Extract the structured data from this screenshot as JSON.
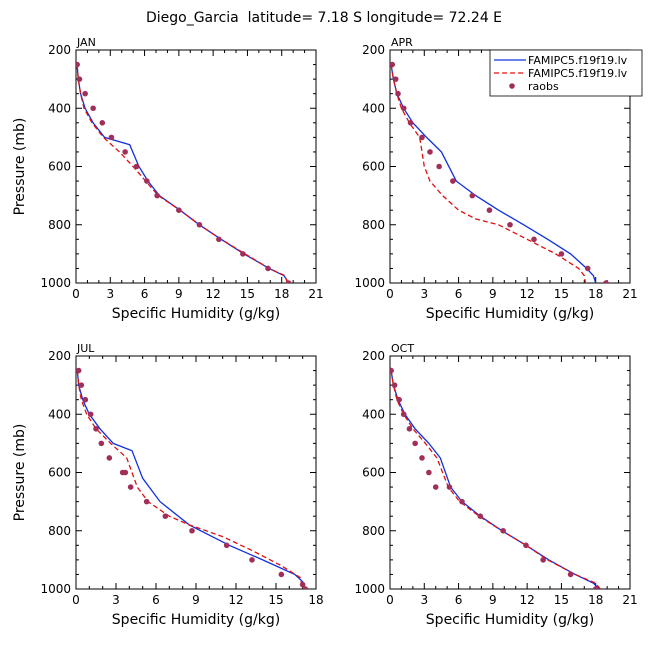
{
  "title": "Diego_Garcia  latitude= 7.18 S longitude= 72.24 E",
  "colors": {
    "model1": "#1030e0",
    "model2": "#e01010",
    "raobs": "#a0305a"
  },
  "legend": {
    "entries": [
      {
        "label": "FAMIPC5.f19f19.lv",
        "style": "solid",
        "color": "#1030e0"
      },
      {
        "label": "FAMIPC5.f19f19.lv",
        "style": "dashed",
        "color": "#e01010"
      },
      {
        "label": "raobs",
        "style": "marker",
        "color": "#a0305a"
      }
    ]
  },
  "chart_data": [
    {
      "type": "line",
      "title": "JAN",
      "xlabel": "Specific Humidity (g/kg)",
      "ylabel": "Pressure (mb)",
      "xlim": [
        0,
        21
      ],
      "ylim": [
        1000,
        200
      ],
      "xticks": [
        0,
        3,
        6,
        9,
        12,
        15,
        18,
        21
      ],
      "yticks": [
        200,
        400,
        600,
        800,
        1000
      ],
      "show_ylabel": true,
      "show_legend": false,
      "series": [
        {
          "style": "solid",
          "color": "#1030e0",
          "x": [
            0.1,
            0.2,
            0.4,
            0.8,
            1.5,
            2.5,
            4.7,
            5.5,
            6.3,
            7.3,
            9.1,
            10.8,
            12.7,
            14.7,
            16.9,
            18.2,
            18.6
          ],
          "y": [
            250,
            300,
            350,
            400,
            450,
            500,
            525,
            600,
            650,
            700,
            750,
            800,
            850,
            900,
            950,
            975,
            1000
          ]
        },
        {
          "style": "dashed",
          "color": "#e01010",
          "x": [
            0.1,
            0.2,
            0.4,
            0.7,
            1.4,
            2.4,
            3.8,
            5.0,
            6.1,
            7.2,
            9.1,
            10.8,
            12.7,
            14.8,
            16.9,
            18.3,
            18.5
          ],
          "y": [
            250,
            300,
            350,
            400,
            450,
            500,
            550,
            600,
            650,
            700,
            750,
            800,
            850,
            900,
            950,
            975,
            1000
          ]
        },
        {
          "style": "marker",
          "color": "#a0305a",
          "x": [
            0.1,
            0.3,
            0.8,
            1.5,
            2.3,
            3.1,
            4.3,
            5.3,
            6.2,
            7.1,
            9.0,
            10.8,
            12.5,
            14.6,
            16.8,
            18.6
          ],
          "y": [
            250,
            300,
            350,
            400,
            450,
            500,
            550,
            600,
            650,
            700,
            750,
            800,
            850,
            900,
            950,
            1000
          ]
        }
      ]
    },
    {
      "type": "line",
      "title": "APR",
      "xlabel": "Specific Humidity (g/kg)",
      "ylabel": "",
      "xlim": [
        0,
        21
      ],
      "ylim": [
        1000,
        200
      ],
      "xticks": [
        0,
        3,
        6,
        9,
        12,
        15,
        18,
        21
      ],
      "yticks": [
        200,
        400,
        600,
        800,
        1000
      ],
      "show_ylabel": false,
      "show_legend": true,
      "series": [
        {
          "style": "solid",
          "color": "#1030e0",
          "x": [
            0.1,
            0.3,
            0.6,
            1.2,
            2.0,
            3.2,
            4.5,
            5.8,
            7.5,
            9.5,
            11.7,
            13.8,
            15.8,
            17.2,
            17.8,
            18.0
          ],
          "y": [
            250,
            300,
            350,
            400,
            450,
            500,
            550,
            650,
            700,
            750,
            800,
            850,
            900,
            950,
            975,
            1000
          ]
        },
        {
          "style": "dashed",
          "color": "#e01010",
          "x": [
            0.1,
            0.3,
            0.6,
            1.0,
            1.7,
            2.6,
            3.0,
            3.5,
            4.6,
            6.0,
            7.5,
            9.5,
            12.0,
            14.5,
            16.5,
            17.0,
            17.1
          ],
          "y": [
            250,
            300,
            350,
            400,
            450,
            500,
            600,
            650,
            700,
            750,
            780,
            800,
            850,
            900,
            950,
            975,
            1000
          ]
        },
        {
          "style": "marker",
          "color": "#a0305a",
          "x": [
            0.2,
            0.5,
            0.7,
            1.2,
            1.8,
            2.8,
            3.5,
            4.3,
            5.5,
            7.2,
            8.7,
            10.5,
            12.6,
            15.0,
            17.3,
            18.9
          ],
          "y": [
            250,
            300,
            350,
            400,
            450,
            500,
            550,
            600,
            650,
            700,
            750,
            800,
            850,
            900,
            950,
            1000
          ]
        }
      ]
    },
    {
      "type": "line",
      "title": "JUL",
      "xlabel": "Specific Humidity (g/kg)",
      "ylabel": "Pressure (mb)",
      "xlim": [
        0,
        18
      ],
      "ylim": [
        1000,
        200
      ],
      "xticks": [
        0,
        3,
        6,
        9,
        12,
        15,
        18
      ],
      "yticks": [
        200,
        400,
        600,
        800,
        1000
      ],
      "show_ylabel": true,
      "show_legend": false,
      "series": [
        {
          "style": "solid",
          "color": "#1030e0",
          "x": [
            0.1,
            0.2,
            0.5,
            1.0,
            1.8,
            2.8,
            4.2,
            5.0,
            6.3,
            8.5,
            11.5,
            14.0,
            16.4,
            17.0,
            17.2
          ],
          "y": [
            250,
            300,
            350,
            400,
            450,
            500,
            525,
            620,
            700,
            780,
            850,
            900,
            950,
            975,
            1000
          ]
        },
        {
          "style": "dashed",
          "color": "#e01010",
          "x": [
            0.1,
            0.2,
            0.4,
            0.8,
            1.5,
            2.6,
            3.8,
            4.6,
            5.4,
            7.0,
            8.5,
            11.0,
            13.3,
            15.4,
            16.8,
            17.0
          ],
          "y": [
            250,
            300,
            350,
            400,
            450,
            500,
            550,
            650,
            700,
            750,
            780,
            820,
            870,
            920,
            960,
            1000
          ]
        },
        {
          "style": "marker",
          "color": "#a0305a",
          "x": [
            0.2,
            0.4,
            0.7,
            1.1,
            1.5,
            1.9,
            2.5,
            3.5,
            3.7,
            4.1,
            5.3,
            6.7,
            8.7,
            11.3,
            13.2,
            15.4,
            17.0,
            17.2
          ],
          "y": [
            250,
            300,
            350,
            400,
            450,
            500,
            550,
            600,
            600,
            650,
            700,
            750,
            800,
            850,
            900,
            950,
            985,
            1000
          ]
        }
      ]
    },
    {
      "type": "line",
      "title": "OCT",
      "xlabel": "Specific Humidity (g/kg)",
      "ylabel": "",
      "xlim": [
        0,
        21
      ],
      "ylim": [
        1000,
        200
      ],
      "xticks": [
        0,
        3,
        6,
        9,
        12,
        15,
        18,
        21
      ],
      "yticks": [
        200,
        400,
        600,
        800,
        1000
      ],
      "show_ylabel": false,
      "show_legend": false,
      "series": [
        {
          "style": "solid",
          "color": "#1030e0",
          "x": [
            0.1,
            0.3,
            0.7,
            1.3,
            2.2,
            3.4,
            4.4,
            5.3,
            6.3,
            7.9,
            9.8,
            11.9,
            13.9,
            16.2,
            17.8,
            18.3
          ],
          "y": [
            250,
            300,
            350,
            400,
            450,
            500,
            550,
            650,
            700,
            750,
            800,
            850,
            900,
            950,
            980,
            1000
          ]
        },
        {
          "style": "dashed",
          "color": "#e01010",
          "x": [
            0.1,
            0.3,
            0.6,
            1.2,
            2.0,
            3.1,
            4.1,
            5.1,
            6.1,
            7.8,
            9.8,
            11.9,
            13.8,
            16.2,
            18.0,
            18.4
          ],
          "y": [
            250,
            300,
            350,
            400,
            450,
            500,
            550,
            650,
            700,
            750,
            800,
            850,
            900,
            950,
            980,
            1000
          ]
        },
        {
          "style": "marker",
          "color": "#a0305a",
          "x": [
            0.1,
            0.4,
            0.8,
            1.2,
            1.7,
            2.2,
            2.8,
            3.4,
            4.0,
            5.2,
            6.3,
            7.9,
            9.9,
            11.9,
            13.4,
            15.8,
            18.0
          ],
          "y": [
            250,
            300,
            350,
            400,
            450,
            500,
            550,
            600,
            650,
            650,
            700,
            750,
            800,
            850,
            900,
            950,
            1000
          ]
        }
      ]
    }
  ]
}
